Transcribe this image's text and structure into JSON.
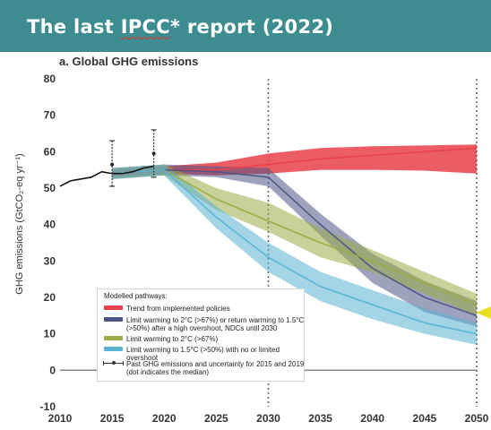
{
  "header": {
    "title_pre": "The last ",
    "title_mark": "IPCC",
    "title_post": "* report (2022)"
  },
  "chart_data": {
    "type": "line",
    "title": "a. Global GHG emissions",
    "ylabel": "GHG emissions (GtCO₂-eq yr⁻¹)",
    "xlim": [
      2010,
      2050
    ],
    "ylim": [
      -10,
      80
    ],
    "x_ticks": [
      2010,
      2015,
      2020,
      2025,
      2030,
      2035,
      2040,
      2045,
      2050
    ],
    "x_tick_labels": [
      "2010",
      "2015",
      "2020",
      "2025",
      "2030",
      "2035",
      "2040",
      "2045",
      "2050"
    ],
    "y_ticks": [
      -10,
      0,
      10,
      20,
      30,
      40,
      50,
      60,
      70,
      80
    ],
    "y_tick_labels": [
      "-10",
      "0",
      "10",
      "20",
      "30",
      "40",
      "50",
      "60",
      "70",
      "80"
    ],
    "reference_lines_x": [
      2030,
      2050
    ],
    "legend": {
      "title": "Modelled pathways:",
      "items": [
        {
          "label": "Trend from implemented policies",
          "color": "#e8404a"
        },
        {
          "label": "Limit warming to 2°C (>67%) or return warming to 1.5°C (>50%) after a high overshoot, NDCs until 2030",
          "color": "#4e5585"
        },
        {
          "label": "Limit warming to 2°C (>67%)",
          "color": "#9aac45"
        },
        {
          "label": "Limit warming to 1.5°C (>50%) with no or limited overshoot",
          "color": "#5ab3d3"
        }
      ],
      "past_label": "Past GHG emissions and uncertainty for 2015 and 2019 (dot indicates the median)"
    },
    "historical": {
      "x": [
        2010,
        2011,
        2012,
        2013,
        2014,
        2015,
        2016,
        2017,
        2018,
        2019
      ],
      "y": [
        50.5,
        52,
        52.5,
        53,
        54.5,
        54,
        54,
        54.5,
        55.5,
        56
      ],
      "uncertainty": [
        {
          "x": 2015,
          "median": 56.5,
          "low": 50.5,
          "high": 63
        },
        {
          "x": 2019,
          "median": 59.5,
          "low": 53,
          "high": 66
        }
      ]
    },
    "series": [
      {
        "name": "Trend from implemented policies",
        "color": "#e8404a",
        "x": [
          2015,
          2020,
          2025,
          2030,
          2035,
          2040,
          2045,
          2050
        ],
        "median": [
          54,
          55,
          55,
          56.5,
          58,
          59,
          60,
          61
        ],
        "upper": [
          55,
          56,
          57,
          59.5,
          61,
          61.5,
          61.7,
          62
        ],
        "lower": [
          53,
          54,
          53.5,
          54,
          55,
          55,
          54.8,
          54
        ]
      },
      {
        "name": "Limit warming to 2°C (>67%) or return warming to 1.5°C (>50%) after a high overshoot, NDCs until 2030",
        "color": "#4e5585",
        "x": [
          2015,
          2020,
          2025,
          2030,
          2035,
          2040,
          2045,
          2050
        ],
        "median": [
          54,
          55,
          54.5,
          53,
          40,
          28,
          20,
          15
        ],
        "upper": [
          55.5,
          56.5,
          56,
          55.5,
          43,
          32,
          24.5,
          19
        ],
        "lower": [
          52.5,
          53.5,
          53,
          50.5,
          37,
          24,
          16,
          12
        ]
      },
      {
        "name": "Limit warming to 2°C (>67%)",
        "color": "#9aac45",
        "x": [
          2015,
          2020,
          2025,
          2030,
          2035,
          2040,
          2045,
          2050
        ],
        "median": [
          54,
          55,
          47,
          41,
          35,
          30,
          24,
          18
        ],
        "upper": [
          55.5,
          56.5,
          50,
          46,
          39,
          33,
          27,
          21
        ],
        "lower": [
          52.5,
          53.5,
          44,
          38,
          31,
          27,
          21,
          15
        ]
      },
      {
        "name": "Limit warming to 1.5°C (>50%) with no or limited overshoot",
        "color": "#5ab3d3",
        "x": [
          2015,
          2020,
          2025,
          2030,
          2035,
          2040,
          2045,
          2050
        ],
        "median": [
          54,
          55,
          42,
          31,
          23,
          18,
          13,
          10
        ],
        "upper": [
          55.5,
          56.5,
          45,
          35,
          27,
          22,
          17,
          13
        ],
        "lower": [
          52.5,
          53.5,
          39,
          27,
          19,
          14,
          10,
          7
        ]
      }
    ],
    "grid": false
  }
}
